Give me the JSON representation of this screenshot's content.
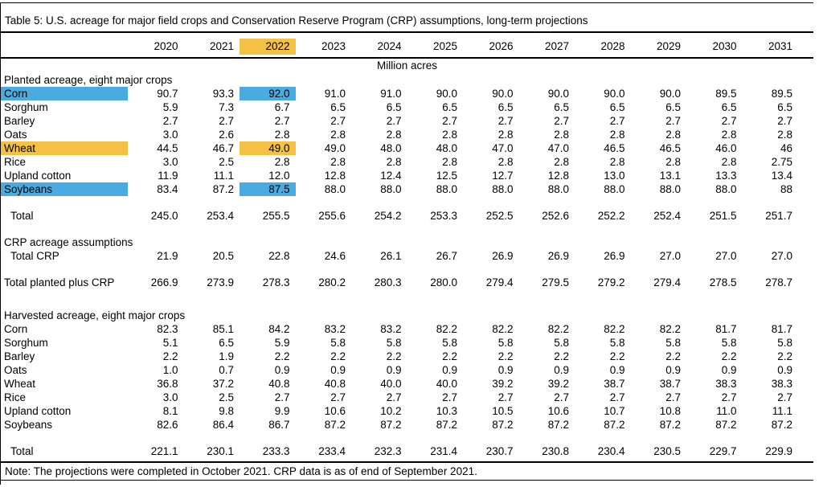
{
  "title": "Table 5: U.S. acreage for major field crops and Conservation Reserve Program (CRP) assumptions, long-term projections",
  "unit_label": "Million acres",
  "years": [
    "2020",
    "2021",
    "2022",
    "2023",
    "2024",
    "2025",
    "2026",
    "2027",
    "2028",
    "2029",
    "2030",
    "2031"
  ],
  "highlight": {
    "year": "2022",
    "colors": {
      "blue": "#4AABE1",
      "yellow": "#F4C145"
    }
  },
  "sections": [
    {
      "header": "Planted acreage, eight major crops",
      "rows": [
        {
          "label": "Corn",
          "highlight": "blue",
          "values": [
            "90.7",
            "93.3",
            "92.0",
            "91.0",
            "91.0",
            "90.0",
            "90.0",
            "90.0",
            "90.0",
            "90.0",
            "89.5",
            "89.5"
          ]
        },
        {
          "label": "Sorghum",
          "values": [
            "5.9",
            "7.3",
            "6.7",
            "6.5",
            "6.5",
            "6.5",
            "6.5",
            "6.5",
            "6.5",
            "6.5",
            "6.5",
            "6.5"
          ]
        },
        {
          "label": "Barley",
          "values": [
            "2.7",
            "2.7",
            "2.7",
            "2.7",
            "2.7",
            "2.7",
            "2.7",
            "2.7",
            "2.7",
            "2.7",
            "2.7",
            "2.7"
          ]
        },
        {
          "label": "Oats",
          "values": [
            "3.0",
            "2.6",
            "2.8",
            "2.8",
            "2.8",
            "2.8",
            "2.8",
            "2.8",
            "2.8",
            "2.8",
            "2.8",
            "2.8"
          ]
        },
        {
          "label": "Wheat",
          "highlight": "yellow",
          "values": [
            "44.5",
            "46.7",
            "49.0",
            "49.0",
            "48.0",
            "48.0",
            "47.0",
            "47.0",
            "46.5",
            "46.5",
            "46.0",
            "46"
          ]
        },
        {
          "label": "Rice",
          "values": [
            "3.0",
            "2.5",
            "2.8",
            "2.8",
            "2.8",
            "2.8",
            "2.8",
            "2.8",
            "2.8",
            "2.8",
            "2.8",
            "2.75"
          ]
        },
        {
          "label": "Upland cotton",
          "values": [
            "11.9",
            "11.1",
            "12.0",
            "12.8",
            "12.4",
            "12.5",
            "12.7",
            "12.8",
            "13.0",
            "13.1",
            "13.3",
            "13.4"
          ]
        },
        {
          "label": "Soybeans",
          "highlight": "blue",
          "values": [
            "83.4",
            "87.2",
            "87.5",
            "88.0",
            "88.0",
            "88.0",
            "88.0",
            "88.0",
            "88.0",
            "88.0",
            "88.0",
            "88"
          ]
        },
        {
          "label": "Total",
          "indent": true,
          "space_before": true,
          "values": [
            "245.0",
            "253.4",
            "255.5",
            "255.6",
            "254.2",
            "253.3",
            "252.5",
            "252.6",
            "252.2",
            "252.4",
            "251.5",
            "251.7"
          ]
        }
      ]
    },
    {
      "header": "CRP acreage assumptions",
      "space_before": true,
      "rows": [
        {
          "label": "Total CRP",
          "indent": true,
          "values": [
            "21.9",
            "20.5",
            "22.8",
            "24.6",
            "26.1",
            "26.7",
            "26.9",
            "26.9",
            "26.9",
            "27.0",
            "27.0",
            "27.0"
          ]
        }
      ]
    },
    {
      "header": null,
      "rows": [
        {
          "label": "Total planted plus CRP",
          "space_before": true,
          "values": [
            "266.9",
            "273.9",
            "278.3",
            "280.2",
            "280.3",
            "280.0",
            "279.4",
            "279.5",
            "279.2",
            "279.4",
            "278.5",
            "278.7"
          ]
        }
      ]
    },
    {
      "header": "Harvested acreage, eight major crops",
      "space_before": true,
      "rows": [
        {
          "label": "Corn",
          "values": [
            "82.3",
            "85.1",
            "84.2",
            "83.2",
            "83.2",
            "82.2",
            "82.2",
            "82.2",
            "82.2",
            "82.2",
            "81.7",
            "81.7"
          ]
        },
        {
          "label": "Sorghum",
          "values": [
            "5.1",
            "6.5",
            "5.9",
            "5.8",
            "5.8",
            "5.8",
            "5.8",
            "5.8",
            "5.8",
            "5.8",
            "5.8",
            "5.8"
          ]
        },
        {
          "label": "Barley",
          "values": [
            "2.2",
            "1.9",
            "2.2",
            "2.2",
            "2.2",
            "2.2",
            "2.2",
            "2.2",
            "2.2",
            "2.2",
            "2.2",
            "2.2"
          ]
        },
        {
          "label": "Oats",
          "values": [
            "1.0",
            "0.7",
            "0.9",
            "0.9",
            "0.9",
            "0.9",
            "0.9",
            "0.9",
            "0.9",
            "0.9",
            "0.9",
            "0.9"
          ]
        },
        {
          "label": "Wheat",
          "values": [
            "36.8",
            "37.2",
            "40.8",
            "40.8",
            "40.0",
            "40.0",
            "39.2",
            "39.2",
            "38.7",
            "38.7",
            "38.3",
            "38.3"
          ]
        },
        {
          "label": "Rice",
          "values": [
            "3.0",
            "2.5",
            "2.7",
            "2.7",
            "2.7",
            "2.7",
            "2.7",
            "2.7",
            "2.7",
            "2.7",
            "2.7",
            "2.7"
          ]
        },
        {
          "label": "Upland cotton",
          "values": [
            "8.1",
            "9.8",
            "9.9",
            "10.6",
            "10.2",
            "10.3",
            "10.5",
            "10.6",
            "10.7",
            "10.8",
            "11.0",
            "11.1"
          ]
        },
        {
          "label": "Soybeans",
          "values": [
            "82.6",
            "86.4",
            "86.7",
            "87.2",
            "87.2",
            "87.2",
            "87.2",
            "87.2",
            "87.2",
            "87.2",
            "87.2",
            "87.2"
          ]
        },
        {
          "label": "Total",
          "indent": true,
          "space_before": true,
          "values": [
            "221.1",
            "230.1",
            "233.3",
            "233.4",
            "232.3",
            "231.4",
            "230.7",
            "230.8",
            "230.4",
            "230.5",
            "229.7",
            "229.9"
          ]
        }
      ]
    }
  ],
  "note": "Note: The projections were completed in October 2021. CRP data is as of end of September 2021."
}
